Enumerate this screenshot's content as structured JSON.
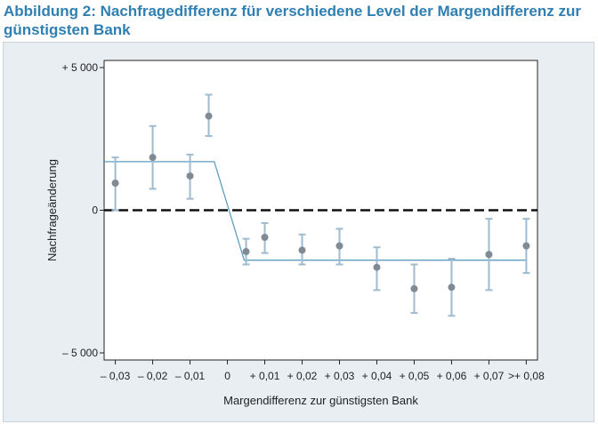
{
  "figure": {
    "title": "Abbildung 2: Nachfragedifferenz für verschiedene Level der Margendifferenz zur günstigsten Bank"
  },
  "chart_data": {
    "type": "scatter",
    "title": "",
    "xlabel": "Margendifferenz zur günstigsten Bank",
    "ylabel": "Nachfrageänderung",
    "x_range": [
      -0.033,
      0.083
    ],
    "ylim": [
      -5000,
      5000
    ],
    "x_ticks": [
      {
        "value": -0.03,
        "label": "– 0,03"
      },
      {
        "value": -0.02,
        "label": "– 0,02"
      },
      {
        "value": -0.01,
        "label": "– 0,01"
      },
      {
        "value": 0,
        "label": "0"
      },
      {
        "value": 0.01,
        "label": "+ 0,01"
      },
      {
        "value": 0.02,
        "label": "+ 0,02"
      },
      {
        "value": 0.03,
        "label": "+ 0,03"
      },
      {
        "value": 0.04,
        "label": "+ 0,04"
      },
      {
        "value": 0.05,
        "label": "+ 0,05"
      },
      {
        "value": 0.06,
        "label": "+ 0,06"
      },
      {
        "value": 0.07,
        "label": "+ 0,07"
      },
      {
        "value": 0.08,
        "label": ">+ 0,08"
      }
    ],
    "y_ticks": [
      {
        "value": 5000,
        "label": "+ 5 000"
      },
      {
        "value": 0,
        "label": "0"
      },
      {
        "value": -5000,
        "label": "– 5 000"
      }
    ],
    "points": [
      {
        "x": -0.03,
        "y": 950,
        "low": 0,
        "high": 1850
      },
      {
        "x": -0.02,
        "y": 1850,
        "low": 750,
        "high": 2950
      },
      {
        "x": -0.01,
        "y": 1200,
        "low": 400,
        "high": 1950
      },
      {
        "x": -0.005,
        "y": 3300,
        "low": 2600,
        "high": 4050
      },
      {
        "x": 0.005,
        "y": -1450,
        "low": -1900,
        "high": -1000
      },
      {
        "x": 0.01,
        "y": -950,
        "low": -1500,
        "high": -450
      },
      {
        "x": 0.02,
        "y": -1400,
        "low": -1900,
        "high": -850
      },
      {
        "x": 0.03,
        "y": -1250,
        "low": -1900,
        "high": -650
      },
      {
        "x": 0.04,
        "y": -2000,
        "low": -2800,
        "high": -1300
      },
      {
        "x": 0.05,
        "y": -2750,
        "low": -3600,
        "high": -1900
      },
      {
        "x": 0.06,
        "y": -2700,
        "low": -3700,
        "high": -1700
      },
      {
        "x": 0.07,
        "y": -1550,
        "low": -2800,
        "high": -300
      },
      {
        "x": 0.08,
        "y": -1250,
        "low": -2200,
        "high": -300
      }
    ],
    "fit_line": [
      {
        "x": -0.033,
        "y": 1700
      },
      {
        "x": -0.0035,
        "y": 1700
      },
      {
        "x": 0.0045,
        "y": -1750
      },
      {
        "x": 0.08,
        "y": -1750
      }
    ],
    "reference_line": {
      "y": 0,
      "style": "dashed"
    },
    "colors": {
      "panel_background": "#e9eef3",
      "plot_background": "#ffffff",
      "marker": "#7f8a94",
      "error_bar": "#9fbbd0",
      "fit_line": "#5f9fc0",
      "reference_line": "#111111",
      "title": "#2f7fb2"
    }
  }
}
